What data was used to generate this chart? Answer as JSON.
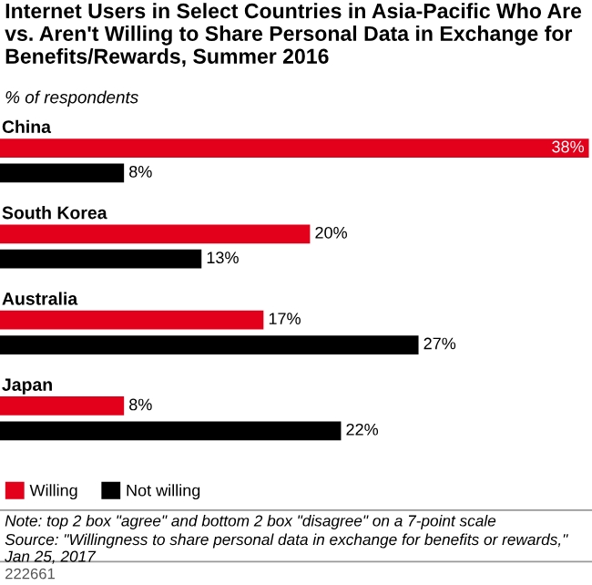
{
  "chart_data": {
    "type": "bar",
    "orientation": "horizontal",
    "title": "Internet Users in Select Countries in Asia-Pacific Who Are vs. Aren't Willing to Share Personal Data in Exchange for Benefits/Rewards, Summer 2016",
    "subtitle": "% of respondents",
    "categories": [
      "China",
      "South Korea",
      "Australia",
      "Japan"
    ],
    "series": [
      {
        "name": "Willing",
        "color": "#e3001b",
        "values": [
          38,
          20,
          17,
          8
        ],
        "value_labels": [
          "38%",
          "20%",
          "17%",
          "8%"
        ]
      },
      {
        "name": "Not willing",
        "color": "#000000",
        "values": [
          8,
          13,
          27,
          22
        ],
        "value_labels": [
          "8%",
          "13%",
          "27%",
          "22%"
        ]
      }
    ],
    "xlim": [
      0,
      38
    ],
    "legend": "bottom left",
    "annotations": [
      "Note: top 2 box \"agree\" and bottom 2 box \"disagree\" on a 7-point scale",
      "Source: \"Willingness to share personal data in exchange for benefits or rewards,\" Jan 25, 2017",
      "222661"
    ]
  }
}
